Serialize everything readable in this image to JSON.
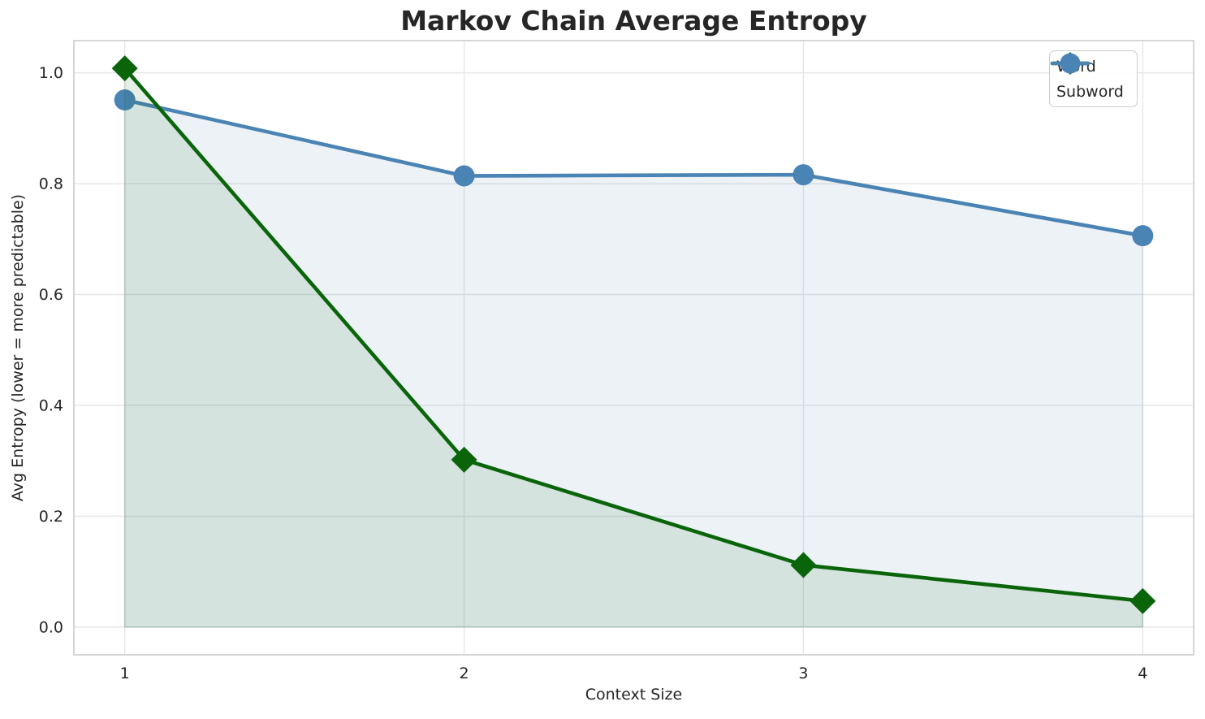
{
  "figure": {
    "background": "#ffffff"
  },
  "style": {
    "text_color": "#262626",
    "title_color": "#262626",
    "grid_color": "#e6e6e6",
    "spine_color": "#cccccc"
  },
  "chart_data": {
    "type": "line",
    "title": "Markov Chain Average Entropy",
    "xlabel": "Context Size",
    "ylabel": "Avg Entropy (lower = more predictable)",
    "x": [
      1,
      2,
      3,
      4
    ],
    "series": [
      {
        "name": "Word",
        "color": "#0a650a",
        "marker": "diamond",
        "values": [
          1.008,
          0.302,
          0.112,
          0.047
        ],
        "fill_to_zero": true,
        "fill_alpha": 0.1
      },
      {
        "name": "Subword",
        "color": "#4a84b5",
        "marker": "circle",
        "values": [
          0.951,
          0.814,
          0.816,
          0.706
        ],
        "fill_to_zero": true,
        "fill_alpha": 0.1
      }
    ],
    "xlim": [
      0.85,
      4.15
    ],
    "ylim": [
      -0.05,
      1.058
    ],
    "xticks": {
      "values": [
        1,
        2,
        3,
        4
      ],
      "labels": [
        "1",
        "2",
        "3",
        "4"
      ]
    },
    "yticks": {
      "values": [
        0.0,
        0.2,
        0.4,
        0.6,
        0.8,
        1.0
      ],
      "labels": [
        "0.0",
        "0.2",
        "0.4",
        "0.6",
        "0.8",
        "1.0"
      ]
    },
    "grid": true,
    "legend": {
      "position": "upper right",
      "entries": [
        "Word",
        "Subword"
      ]
    }
  }
}
